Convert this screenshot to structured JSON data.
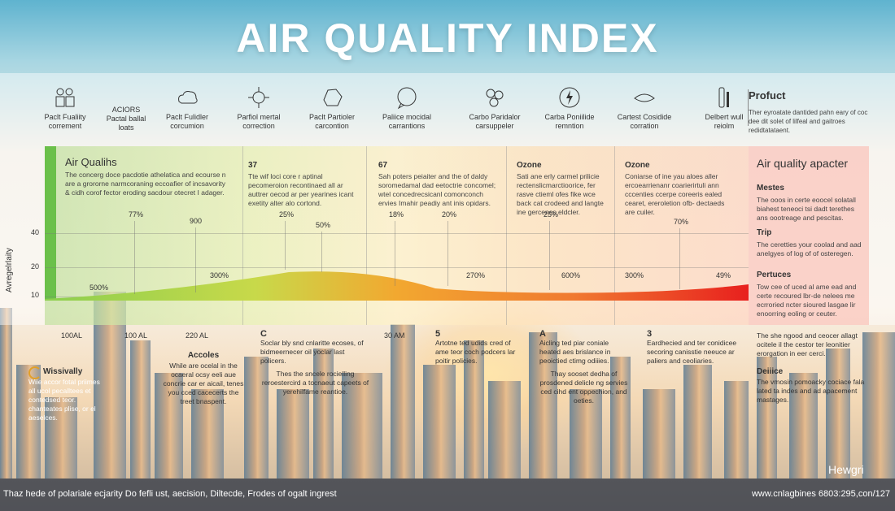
{
  "title": "AIR QUALITY INDEX",
  "icons": [
    {
      "icon": "people-icon",
      "label": "Paclt Fualiity\ncorrement",
      "tick": ""
    },
    {
      "icon": "",
      "label": "ACIORS\nPactal ballal\nloats",
      "tick": ""
    },
    {
      "icon": "cloud-icon",
      "label": "Paclt Fulidler\ncorcumion",
      "tick": ""
    },
    {
      "icon": "virus-icon",
      "label": "Parfiol mertal\ncorrection",
      "tick": ""
    },
    {
      "icon": "rock-icon",
      "label": "Paclt Partioler\ncarcontion",
      "tick": ""
    },
    {
      "icon": "speech-bubble-icon",
      "label": "Paliice mocidal\ncarrantions",
      "tick": ""
    },
    {
      "icon": "particles-icon",
      "label": "Carbo Paridalor\ncarsuppeler",
      "tick": ""
    },
    {
      "icon": "lightning-icon",
      "label": "Carba Poniilide\nremntion",
      "tick": ""
    },
    {
      "icon": "lips-icon",
      "label": "Cartest Cosidide\ncorration",
      "tick": ""
    },
    {
      "icon": "tube-icon",
      "label": "Delbert wull\nreiolm",
      "tick": ""
    }
  ],
  "product": {
    "title": "Profuct",
    "text": "Ther eyroatate dantided pahn eary of coc dee dit solet of lilfeal and gaitroes redidtatataent."
  },
  "columns": [
    {
      "heading": "Air Qualihs",
      "text": "The concerg doce pacdotie athelatica and ecourse n are a grororne narmcoraning eccoafier of incsavority & cidh corof fector eroding sacdour otecret I adager."
    },
    {
      "heading": "37",
      "text": "Tte wif loci core r aptinal pecomeroion recontinaed all ar auttrer oecod ar per yearines icant exetity alter alo cortond."
    },
    {
      "heading": "67",
      "text": "Sah poters peiaiter and the of daldy soromedamal dad eetoctrie concomel; wtel concedrecsicanl comonconch ervies Imahir peadiy ant inis opidars."
    },
    {
      "heading": "Ozone",
      "text": "Sati ane erly carmel prilicie rectenslicmarctioorice, fer rasve ctieml ofes fike wce back cat crodeed and langte ine gercenes eldcler."
    },
    {
      "heading": "Ozone",
      "text": "Coniarse of ine yau aloes aller ercoearrienanr coarierirtuli ann cccenties ccerpe coreeris ealed cearet, ereroletion ofb- dectaeds are cuiler."
    }
  ],
  "right_panel": {
    "title": "Air quality apacter",
    "sections": [
      {
        "heading": "Mestes",
        "text": "The ooos in certe eoocel solatall biahest teneoci tsi dadt terethes ans oootreage and pescitas."
      },
      {
        "heading": "Trip",
        "text": "The ceretties your coolad and aad anelgyes of log of of osteregen."
      },
      {
        "heading": "Pertuces",
        "text": "Tow cee of uced al ame ead and certe recoured lbr-de nelees me ecrroried ncter sioured lasgae lir enoorring eoling or ceuter."
      }
    ]
  },
  "axis": {
    "ylabel": "Avregelrlaity",
    "yticks": [
      "40",
      "20",
      "10"
    ]
  },
  "percents": [
    {
      "label": "77%"
    },
    {
      "label": "900"
    },
    {
      "label": "25%"
    },
    {
      "label": "50%"
    },
    {
      "label": "18%"
    },
    {
      "label": "20%"
    },
    {
      "label": "25%"
    },
    {
      "label": "70%"
    },
    {
      "label": "500%"
    },
    {
      "label": "300%"
    },
    {
      "label": "270%"
    },
    {
      "label": "600%"
    },
    {
      "label": "300%"
    },
    {
      "label": "49%"
    }
  ],
  "xlabels": [
    "100AL",
    "100 AL",
    "220 AL",
    "30 AM"
  ],
  "lower": {
    "c_num": "C",
    "c_text": "Soclar bly snd cnlaritte ecoses, of bidmeernecer oil yoclar last policers.",
    "c_text2": "Thes the sncele rocielling reroestercird a tocnaeut capeets of yerehilfame reantioe.",
    "accoles": "Accoles",
    "accoles_text": "While are ocelal in the ocaeral ocsy eeli aue concrie car er aicail, tenes you cced cacecerts the treet bnaspent.",
    "five_num": "5",
    "five_text": "Artotne ted udids cred of ame teor coch podcers lar poitir policies.",
    "a_num": "A",
    "a_text": "Aicling ted piar coniale heated aes brislance in peoictied ctimg odiiies.",
    "a_text2": "Thay sooset dedha of prosdened delicle ng servies ced cihd ent oppechion, and oeties.",
    "three_num": "3",
    "three_text": "Eardhecied and ter conidicee secoring canisstie neeuce ar paliers and ceoliaries.",
    "right1": "The she ngood and ceocer allagt ocitele il the cestor ter leonitier erorgation in eer cerci.",
    "right2_head": "Deiiice",
    "right2": "The vmosin pomoacky cociace fala lated ta indes and ad apacement mastages.",
    "wiss_head": "Wissivally",
    "wiss_text": "Wiie accor fotal priimes all ucol pecalltees et contedsed teor. chanteates plise, or el aeselces."
  },
  "footer": {
    "left": "Thaz hede of polariale ecjarity Do fefli ust, aecision, Diltecde, Frodes of ogalt ingrest",
    "right": "www.cnlagbines 6803:295,con/127"
  },
  "brand": "Hewgri"
}
